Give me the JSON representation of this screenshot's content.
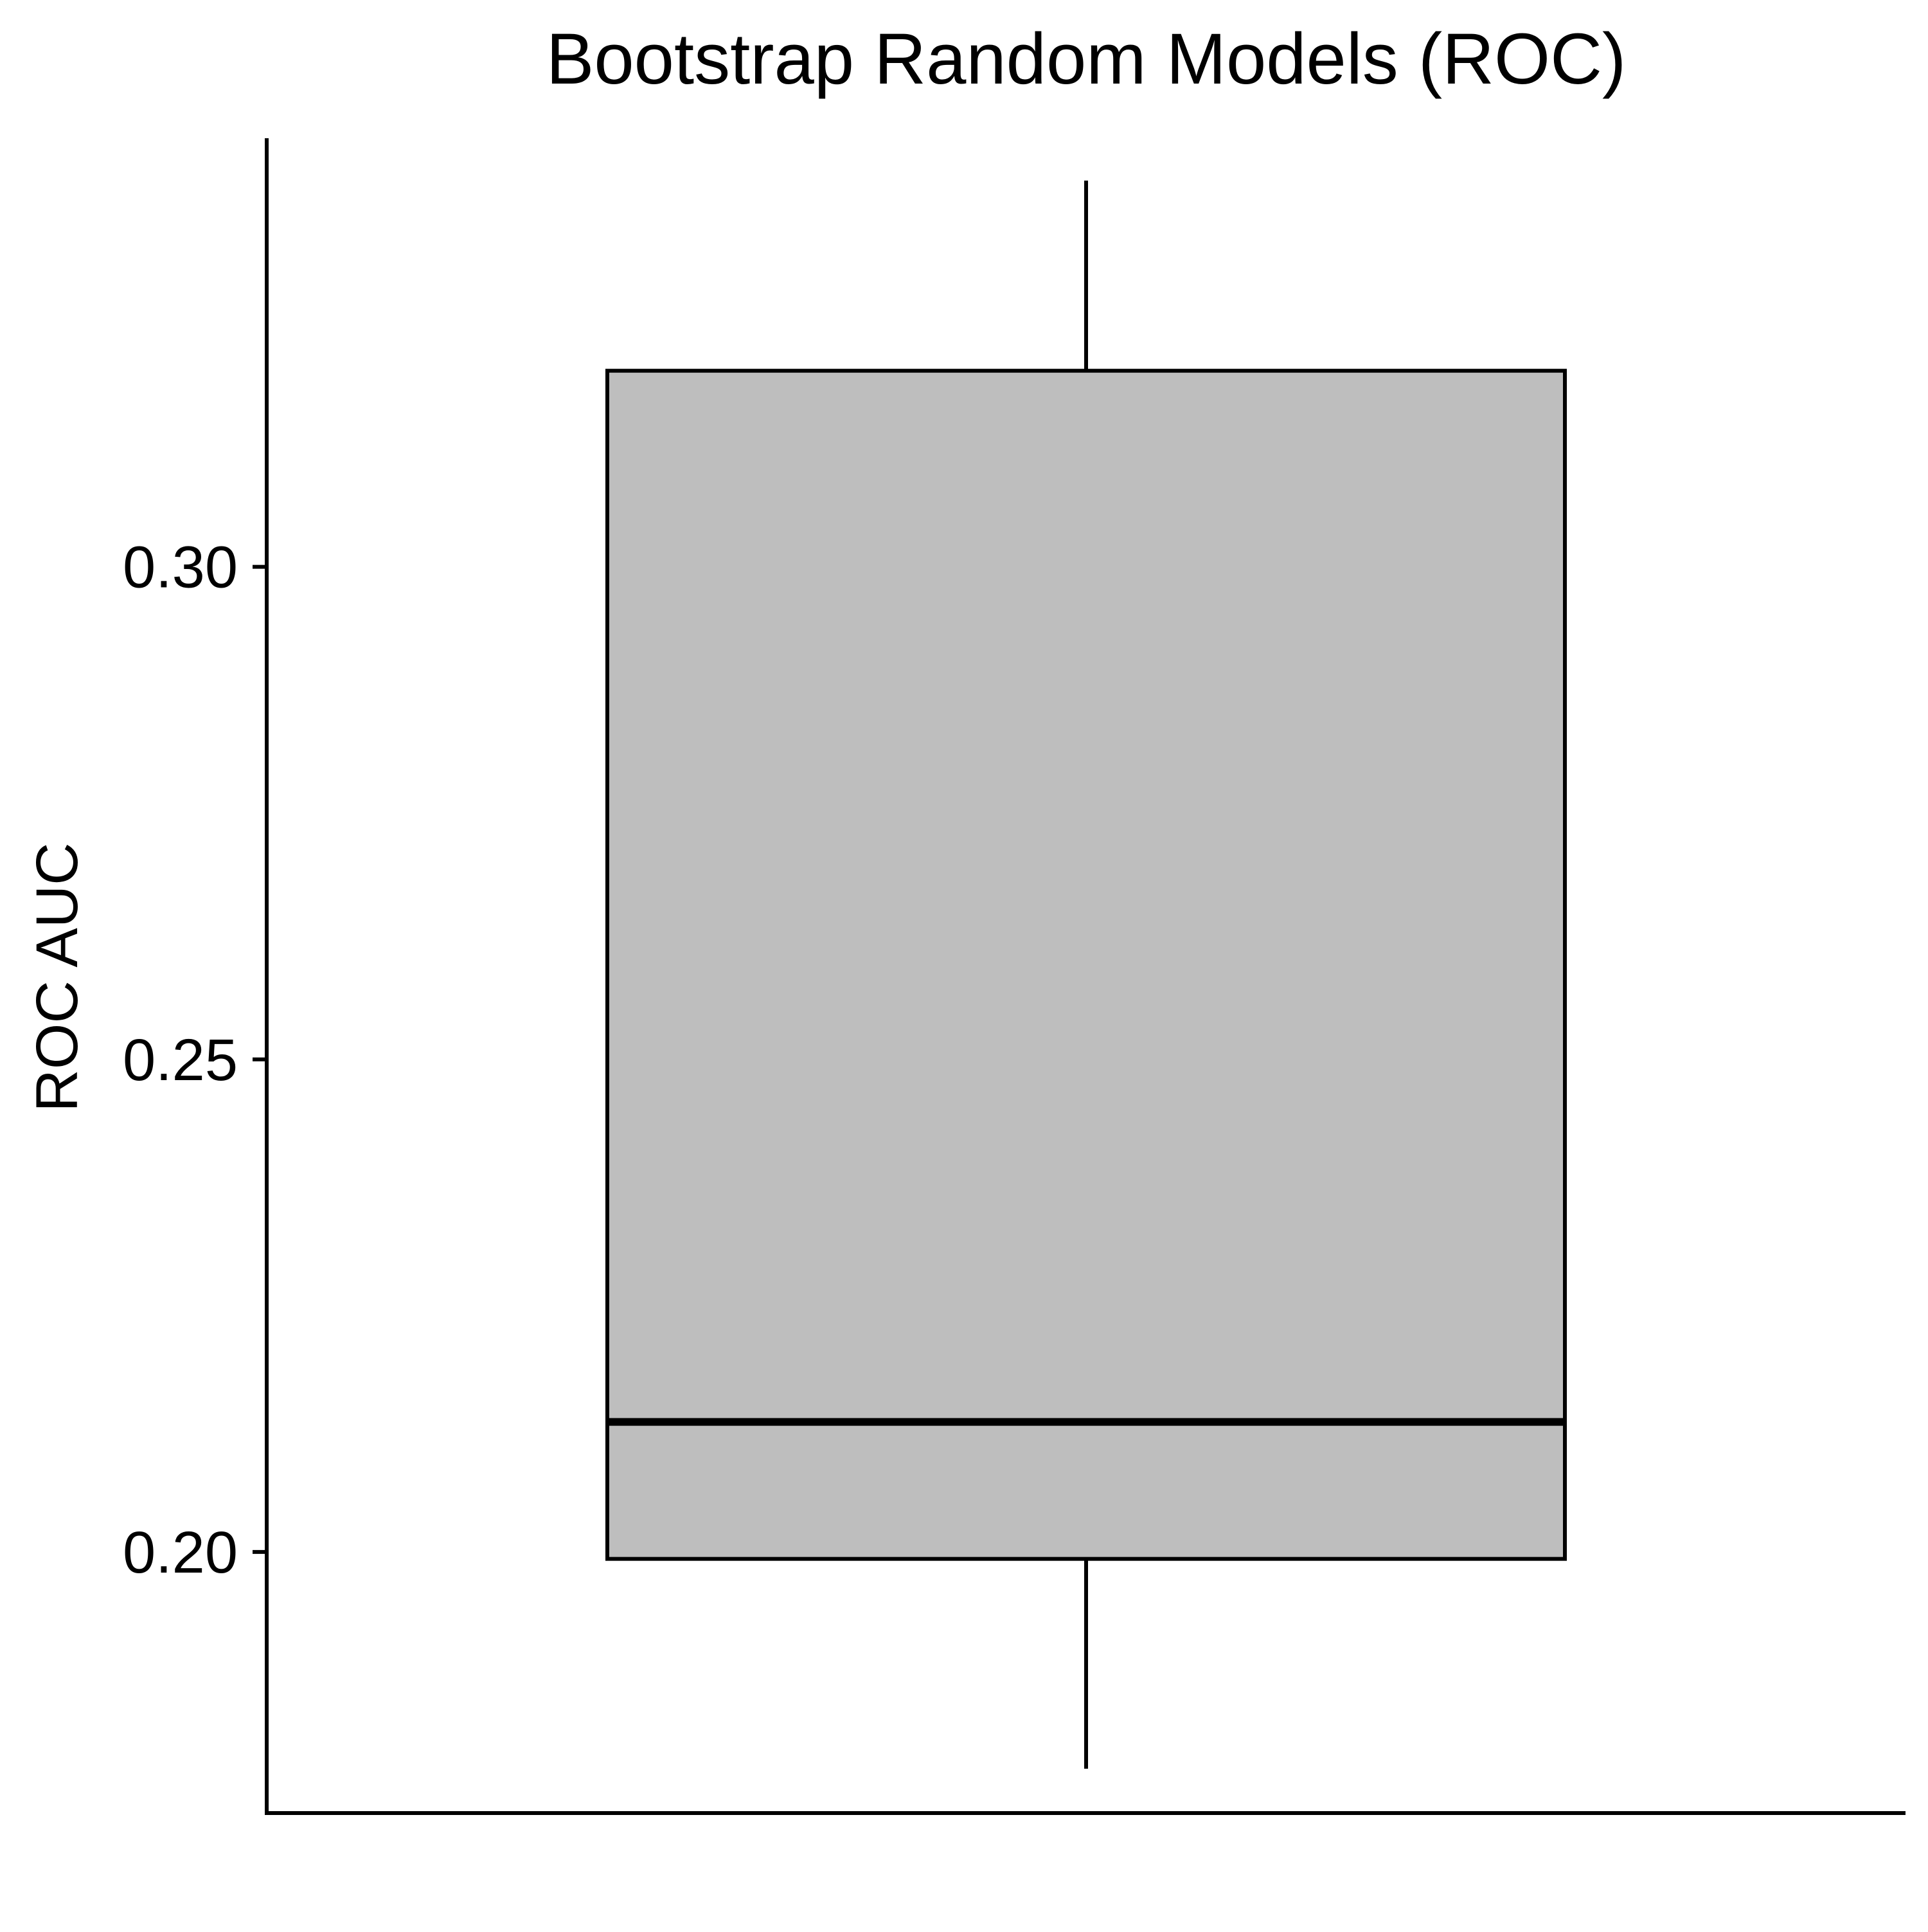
{
  "chart_data": {
    "type": "box",
    "title": "Bootstrap Random Models (ROC)",
    "xlabel": "",
    "ylabel": "ROC AUC",
    "ylim": [
      0.1735,
      0.3435
    ],
    "yticks": [
      0.2,
      0.25,
      0.3
    ],
    "ytick_labels": [
      "0.20",
      "0.25",
      "0.30"
    ],
    "grid": false,
    "legend": "none",
    "box": {
      "whisker_low": 0.178,
      "q1": 0.1993,
      "median": 0.2132,
      "q3": 0.3199,
      "whisker_high": 0.3392
    },
    "colors": {
      "box_fill": "#bebebe",
      "line": "#000000",
      "background": "#ffffff"
    }
  }
}
